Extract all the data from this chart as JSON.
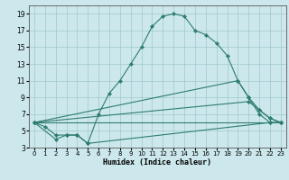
{
  "xlabel": "Humidex (Indice chaleur)",
  "bg_color": "#cce8ec",
  "grid_color": "#a0c8cc",
  "line_color": "#2e7d6e",
  "xlim": [
    -0.5,
    23.5
  ],
  "ylim": [
    3,
    20
  ],
  "xticks": [
    0,
    1,
    2,
    3,
    4,
    5,
    6,
    7,
    8,
    9,
    10,
    11,
    12,
    13,
    14,
    15,
    16,
    17,
    18,
    19,
    20,
    21,
    22,
    23
  ],
  "yticks": [
    3,
    5,
    7,
    9,
    11,
    13,
    15,
    17,
    19
  ],
  "line1_x": [
    0,
    1,
    2,
    3,
    4,
    5,
    6,
    7,
    8,
    9,
    10,
    11,
    12,
    13,
    14,
    15,
    16,
    17,
    18,
    19,
    20,
    21,
    22,
    23
  ],
  "line1_y": [
    6,
    5.5,
    4.5,
    4.5,
    4.5,
    3.5,
    7,
    9.5,
    11,
    13,
    15,
    17.5,
    18.7,
    19,
    18.7,
    17,
    16.5,
    15.5,
    14,
    11,
    9,
    7,
    6,
    6
  ],
  "line2_x": [
    0,
    2,
    3,
    4,
    5,
    22,
    23
  ],
  "line2_y": [
    6,
    4,
    4.5,
    4.5,
    3.5,
    6,
    6
  ],
  "line3_x": [
    0,
    23
  ],
  "line3_y": [
    6,
    6
  ],
  "line4_x": [
    0,
    19,
    20,
    21,
    22,
    23
  ],
  "line4_y": [
    6,
    11,
    9,
    7.5,
    6.5,
    6
  ],
  "line5_x": [
    0,
    20,
    21,
    22,
    23
  ],
  "line5_y": [
    6,
    8.5,
    7.5,
    6.5,
    6
  ]
}
